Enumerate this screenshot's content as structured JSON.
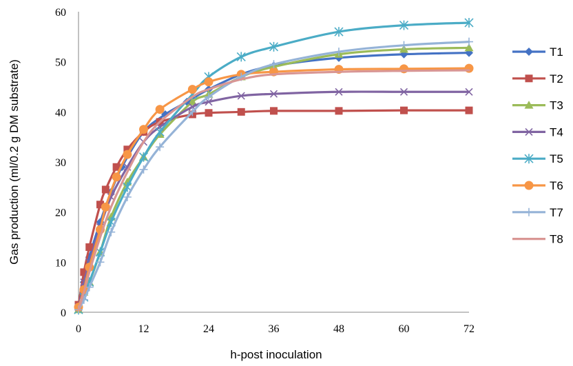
{
  "chart_data": {
    "type": "line",
    "title": "",
    "xlabel": "h-post inoculation",
    "ylabel": "Gas production (ml/0.2  g DM substrate)",
    "xlim": [
      0,
      72
    ],
    "ylim": [
      0,
      60
    ],
    "x_ticks": [
      0,
      12,
      24,
      36,
      48,
      60,
      72
    ],
    "y_ticks": [
      0,
      10,
      20,
      30,
      40,
      50,
      60
    ],
    "grid": false,
    "legend": "right",
    "series": [
      {
        "name": "T1",
        "color": "#4472C4",
        "marker": "diamond",
        "points": [
          [
            0,
            1
          ],
          [
            1,
            6
          ],
          [
            2,
            11
          ],
          [
            4,
            18
          ],
          [
            6,
            24
          ],
          [
            8,
            29
          ],
          [
            12,
            36
          ],
          [
            16,
            39.5
          ],
          [
            20,
            42
          ],
          [
            24,
            44.5
          ],
          [
            30,
            47.5
          ],
          [
            36,
            49.2
          ],
          [
            48,
            50.8
          ],
          [
            60,
            51.5
          ],
          [
            72,
            51.8
          ]
        ]
      },
      {
        "name": "T2",
        "color": "#C0504D",
        "marker": "square",
        "points": [
          [
            0,
            1.5
          ],
          [
            1,
            8
          ],
          [
            2,
            13
          ],
          [
            4,
            21.5
          ],
          [
            5,
            24.5
          ],
          [
            7,
            29
          ],
          [
            9,
            32.5
          ],
          [
            12,
            36
          ],
          [
            15,
            38
          ],
          [
            21,
            39.5
          ],
          [
            24,
            39.8
          ],
          [
            30,
            40
          ],
          [
            36,
            40.2
          ],
          [
            48,
            40.2
          ],
          [
            60,
            40.3
          ],
          [
            72,
            40.3
          ]
        ]
      },
      {
        "name": "T3",
        "color": "#9BBB59",
        "marker": "triangle",
        "points": [
          [
            0,
            0.5
          ],
          [
            1,
            4
          ],
          [
            2,
            6
          ],
          [
            4,
            12
          ],
          [
            6,
            19
          ],
          [
            9,
            26
          ],
          [
            12,
            31
          ],
          [
            15,
            35.5
          ],
          [
            21,
            42
          ],
          [
            24,
            43.5
          ],
          [
            30,
            47
          ],
          [
            36,
            49
          ],
          [
            48,
            51.5
          ],
          [
            60,
            52.5
          ],
          [
            72,
            52.8
          ]
        ]
      },
      {
        "name": "T4",
        "color": "#8064A2",
        "marker": "x",
        "points": [
          [
            0,
            1
          ],
          [
            1,
            6
          ],
          [
            2,
            10
          ],
          [
            4,
            17
          ],
          [
            6,
            23
          ],
          [
            9,
            29
          ],
          [
            12,
            34
          ],
          [
            15,
            37
          ],
          [
            21,
            41
          ],
          [
            24,
            42
          ],
          [
            30,
            43.2
          ],
          [
            36,
            43.6
          ],
          [
            48,
            44
          ],
          [
            60,
            44
          ],
          [
            72,
            44
          ]
        ]
      },
      {
        "name": "T5",
        "color": "#4BACC6",
        "marker": "star",
        "points": [
          [
            0,
            0.5
          ],
          [
            1,
            3
          ],
          [
            2,
            6
          ],
          [
            4,
            12
          ],
          [
            6,
            18
          ],
          [
            9,
            25
          ],
          [
            12,
            31
          ],
          [
            15,
            36
          ],
          [
            21,
            43.5
          ],
          [
            24,
            47
          ],
          [
            30,
            51
          ],
          [
            36,
            53
          ],
          [
            48,
            56
          ],
          [
            60,
            57.3
          ],
          [
            72,
            57.8
          ]
        ]
      },
      {
        "name": "T6",
        "color": "#F79646",
        "marker": "circle",
        "points": [
          [
            0,
            1
          ],
          [
            1,
            4.5
          ],
          [
            2,
            9
          ],
          [
            4,
            16.5
          ],
          [
            5,
            21
          ],
          [
            7,
            27
          ],
          [
            9,
            31.5
          ],
          [
            12,
            36.5
          ],
          [
            15,
            40.5
          ],
          [
            21,
            44.5
          ],
          [
            24,
            46
          ],
          [
            30,
            47.5
          ],
          [
            36,
            48
          ],
          [
            48,
            48.5
          ],
          [
            60,
            48.6
          ],
          [
            72,
            48.7
          ]
        ]
      },
      {
        "name": "T7",
        "color": "#95B3D7",
        "marker": "plus",
        "points": [
          [
            0,
            0.5
          ],
          [
            1,
            2.5
          ],
          [
            2,
            5
          ],
          [
            4,
            10
          ],
          [
            6,
            16
          ],
          [
            9,
            23
          ],
          [
            12,
            28.5
          ],
          [
            15,
            33
          ],
          [
            21,
            40
          ],
          [
            24,
            43
          ],
          [
            30,
            47
          ],
          [
            36,
            49.5
          ],
          [
            48,
            52
          ],
          [
            60,
            53.3
          ],
          [
            72,
            54
          ]
        ]
      },
      {
        "name": "T8",
        "color": "#D99694",
        "marker": "none",
        "points": [
          [
            0,
            0.5
          ],
          [
            1,
            4
          ],
          [
            2,
            8
          ],
          [
            4,
            15
          ],
          [
            6,
            21
          ],
          [
            9,
            28
          ],
          [
            12,
            34
          ],
          [
            15,
            38
          ],
          [
            21,
            43
          ],
          [
            24,
            44.5
          ],
          [
            30,
            46.5
          ],
          [
            36,
            47.5
          ],
          [
            48,
            48
          ],
          [
            60,
            48.2
          ],
          [
            72,
            48.3
          ]
        ]
      }
    ]
  }
}
